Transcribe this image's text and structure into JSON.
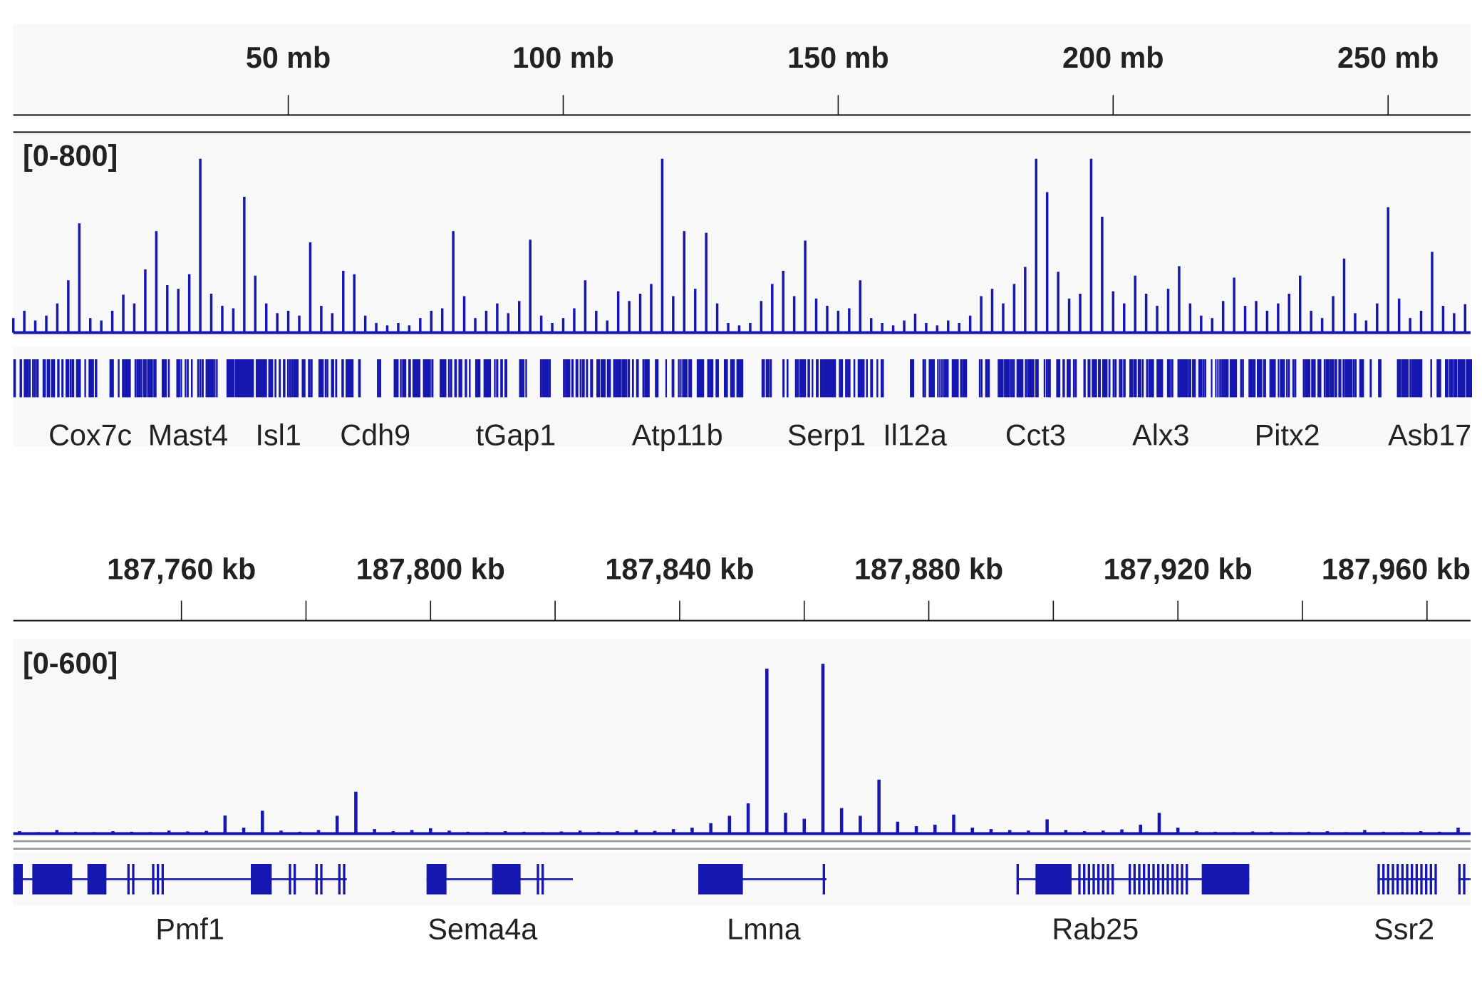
{
  "chart_data": [
    {
      "type": "bar",
      "range_label": "[0-800]",
      "color": "#1616b0",
      "xlim": [
        0,
        265
      ],
      "ylim": [
        0,
        800
      ],
      "xticks": [
        {
          "value": 50,
          "label": "50 mb"
        },
        {
          "value": 100,
          "label": "100 mb"
        },
        {
          "value": 150,
          "label": "150 mb"
        },
        {
          "value": 200,
          "label": "200 mb"
        },
        {
          "value": 250,
          "label": "250 mb"
        }
      ],
      "x": [
        0,
        2,
        4,
        6,
        8,
        10,
        12,
        14,
        16,
        18,
        20,
        22,
        24,
        26,
        28,
        30,
        32,
        34,
        36,
        38,
        40,
        42,
        44,
        46,
        48,
        50,
        52,
        54,
        56,
        58,
        60,
        62,
        64,
        66,
        68,
        70,
        72,
        74,
        76,
        78,
        80,
        82,
        84,
        86,
        88,
        90,
        92,
        94,
        96,
        98,
        100,
        102,
        104,
        106,
        108,
        110,
        112,
        114,
        116,
        118,
        120,
        122,
        124,
        126,
        128,
        130,
        132,
        134,
        136,
        138,
        140,
        142,
        144,
        146,
        148,
        150,
        152,
        154,
        156,
        158,
        160,
        162,
        164,
        166,
        168,
        170,
        172,
        174,
        176,
        178,
        180,
        182,
        184,
        186,
        188,
        190,
        192,
        194,
        196,
        198,
        200,
        202,
        204,
        206,
        208,
        210,
        212,
        214,
        216,
        218,
        220,
        222,
        224,
        226,
        228,
        230,
        232,
        234,
        236,
        238,
        240,
        242,
        244,
        246,
        248,
        250,
        252,
        254,
        256,
        258,
        260,
        262,
        264
      ],
      "values": [
        60,
        90,
        50,
        70,
        120,
        215,
        449,
        60,
        50,
        90,
        156,
        120,
        260,
        417,
        195,
        180,
        240,
        714,
        160,
        110,
        100,
        558,
        234,
        120,
        80,
        90,
        70,
        371,
        110,
        80,
        254,
        240,
        70,
        40,
        30,
        40,
        30,
        60,
        90,
        100,
        417,
        150,
        60,
        90,
        120,
        80,
        130,
        382,
        70,
        40,
        60,
        100,
        215,
        90,
        50,
        170,
        130,
        160,
        200,
        714,
        150,
        417,
        180,
        410,
        120,
        40,
        30,
        40,
        130,
        200,
        254,
        150,
        378,
        140,
        110,
        90,
        100,
        215,
        60,
        40,
        30,
        50,
        78,
        40,
        30,
        50,
        40,
        70,
        150,
        180,
        120,
        200,
        270,
        714,
        577,
        250,
        140,
        160,
        714,
        476,
        170,
        120,
        234,
        160,
        110,
        180,
        273,
        120,
        70,
        60,
        130,
        226,
        110,
        130,
        90,
        120,
        160,
        234,
        90,
        60,
        150,
        304,
        80,
        50,
        120,
        515,
        140,
        60,
        90,
        332,
        110,
        80,
        117
      ],
      "gene_labels": [
        "Cox7c",
        "Mast4",
        "Isl1",
        "Cdh9",
        "tGap1",
        "Atp11b",
        "Serp1",
        "Il12a",
        "Cct3",
        "Alx3",
        "Pitx2",
        "Asb17"
      ]
    },
    {
      "type": "bar",
      "range_label": "[0-600]",
      "color": "#1616b0",
      "xlim": [
        187733,
        187967
      ],
      "ylim": [
        0,
        600
      ],
      "xticks": [
        {
          "value": 187760,
          "label": "187,760 kb"
        },
        {
          "value": 187780,
          "label": null
        },
        {
          "value": 187800,
          "label": "187,800 kb"
        },
        {
          "value": 187820,
          "label": null
        },
        {
          "value": 187840,
          "label": "187,840 kb"
        },
        {
          "value": 187860,
          "label": null
        },
        {
          "value": 187880,
          "label": "187,880 kb"
        },
        {
          "value": 187900,
          "label": null
        },
        {
          "value": 187920,
          "label": "187,920 kb"
        },
        {
          "value": 187940,
          "label": null
        },
        {
          "value": 187960,
          "label": "187,960 kb"
        }
      ],
      "x": [
        187734,
        187737,
        187740,
        187743,
        187746,
        187749,
        187752,
        187755,
        187758,
        187761,
        187764,
        187767,
        187770,
        187773,
        187776,
        187779,
        187782,
        187785,
        187788,
        187791,
        187794,
        187797,
        187800,
        187803,
        187806,
        187809,
        187812,
        187815,
        187818,
        187821,
        187824,
        187827,
        187830,
        187833,
        187836,
        187839,
        187842,
        187845,
        187848,
        187851,
        187854,
        187857,
        187860,
        187863,
        187866,
        187869,
        187872,
        187875,
        187878,
        187881,
        187884,
        187887,
        187890,
        187893,
        187896,
        187899,
        187902,
        187905,
        187908,
        187911,
        187914,
        187917,
        187920,
        187923,
        187926,
        187929,
        187932,
        187935,
        187938,
        187941,
        187944,
        187947,
        187950,
        187953,
        187956,
        187959,
        187962,
        187965
      ],
      "values": [
        8,
        5,
        12,
        6,
        5,
        8,
        6,
        5,
        10,
        7,
        9,
        61,
        20,
        77,
        10,
        6,
        12,
        60,
        141,
        15,
        8,
        12,
        18,
        10,
        6,
        5,
        8,
        6,
        5,
        7,
        10,
        6,
        8,
        12,
        9,
        15,
        20,
        35,
        60,
        102,
        557,
        70,
        50,
        573,
        86,
        60,
        182,
        40,
        25,
        30,
        64,
        20,
        15,
        12,
        10,
        48,
        12,
        8,
        10,
        14,
        30,
        70,
        20,
        8,
        6,
        5,
        7,
        6,
        5,
        6,
        8,
        5,
        12,
        6,
        5,
        8,
        6,
        20
      ],
      "gene_labels": [
        "Pmf1",
        "Sema4a",
        "Lmna",
        "Rab25",
        "Ssr2"
      ]
    }
  ]
}
